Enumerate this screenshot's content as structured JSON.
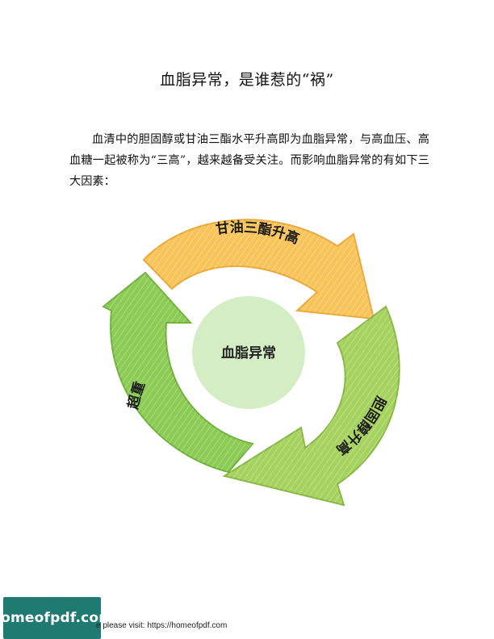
{
  "document": {
    "title": "血脂异常，是谁惹的“祸”",
    "paragraph": "血清中的胆固醇或甘油三酯水平升高即为血脂异常，与高血压、高血糖一起被称为“三高”，越来越备受关注。而影响血脂异常的有如下三大因素："
  },
  "diagram": {
    "center_label": "血脂异常",
    "segments": [
      {
        "label": "甘油三酯升高",
        "color": "#f9c55a"
      },
      {
        "label": "胆固醇升高",
        "color": "#9fd05a"
      },
      {
        "label": "超重",
        "color": "#8ccc55"
      }
    ],
    "center_color": "#d4edc4"
  },
  "footer": {
    "logo": "homeofpdf.com",
    "text": "e please visit: https://homeofpdf.com"
  }
}
